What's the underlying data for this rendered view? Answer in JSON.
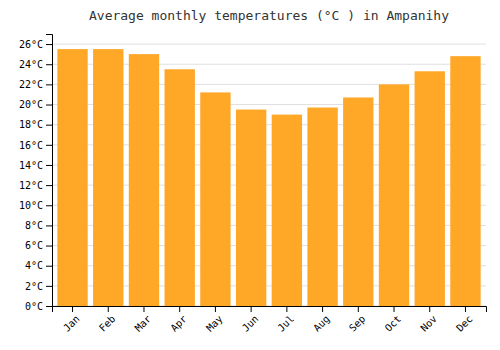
{
  "chart_data": {
    "type": "bar",
    "title": "Average monthly temperatures (°C ) in Ampanihy",
    "categories": [
      "Jan",
      "Feb",
      "Mar",
      "Apr",
      "May",
      "Jun",
      "Jul",
      "Aug",
      "Sep",
      "Oct",
      "Nov",
      "Dec"
    ],
    "values": [
      25.5,
      25.5,
      25.0,
      23.5,
      21.2,
      19.5,
      19.0,
      19.7,
      20.7,
      22.0,
      23.3,
      24.8
    ],
    "color": "#FFA726",
    "ylim": [
      0,
      27
    ],
    "yticks": [
      {
        "value": 0,
        "label": "0°C"
      },
      {
        "value": 2,
        "label": "2°C"
      },
      {
        "value": 4,
        "label": "4°C"
      },
      {
        "value": 6,
        "label": "6°C"
      },
      {
        "value": 8,
        "label": "8°C"
      },
      {
        "value": 10,
        "label": "10°C"
      },
      {
        "value": 12,
        "label": "12°C"
      },
      {
        "value": 14,
        "label": "14°C"
      },
      {
        "value": 16,
        "label": "16°C"
      },
      {
        "value": 18,
        "label": "18°C"
      },
      {
        "value": 20,
        "label": "20°C"
      },
      {
        "value": 22,
        "label": "22°C"
      },
      {
        "value": 24,
        "label": "24°C"
      },
      {
        "value": 26,
        "label": "26°C"
      }
    ],
    "grid": true
  }
}
